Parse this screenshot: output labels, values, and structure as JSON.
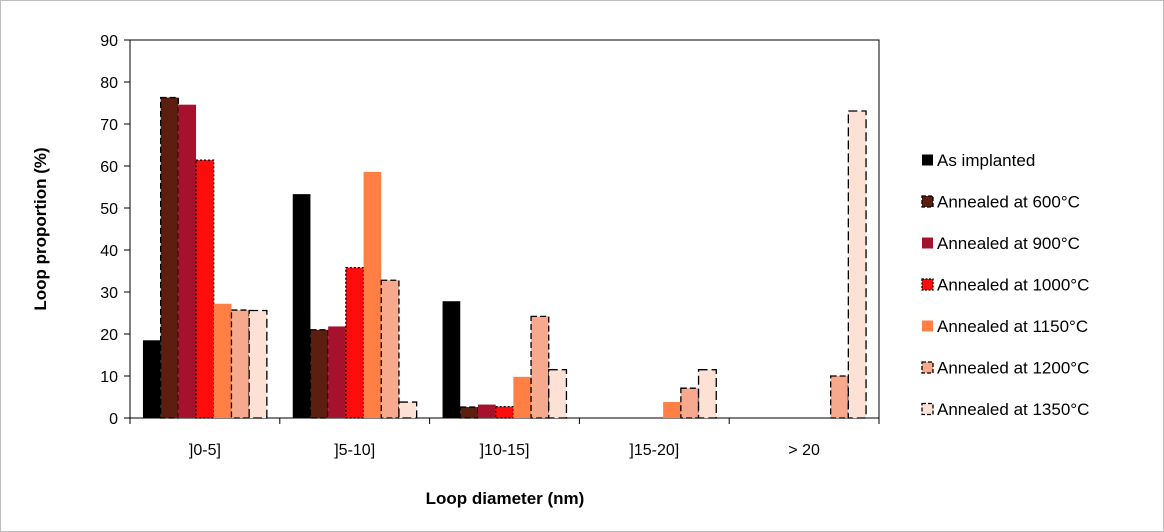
{
  "chart_data": {
    "type": "bar",
    "xlabel": "Loop diameter (nm)",
    "ylabel": "Loop proportion (%)",
    "ylim": [
      0,
      90
    ],
    "yticks": [
      "0",
      "10",
      "20",
      "30",
      "40",
      "50",
      "60",
      "70",
      "80",
      "90"
    ],
    "categories": [
      "]0-5]",
      "]5-10]",
      "]10-15]",
      "]15-20]",
      "> 20"
    ],
    "grid": false,
    "legend_position": "right",
    "series": [
      {
        "name": "As implanted",
        "color": "#000000",
        "border": "solid",
        "values": [
          18.5,
          53.3,
          27.8,
          0,
          0
        ]
      },
      {
        "name": "Annealed at 600°C",
        "color": "#5c1f0f",
        "border": "dashed",
        "values": [
          76.3,
          21.0,
          2.6,
          0,
          0
        ]
      },
      {
        "name": "Annealed at 900°C",
        "color": "#a6122d",
        "border": "solid",
        "values": [
          74.6,
          21.8,
          3.2,
          0,
          0
        ]
      },
      {
        "name": "Annealed at 1000°C",
        "color": "#ff0d0d",
        "border": "dotted",
        "values": [
          61.4,
          35.8,
          2.7,
          0,
          0
        ]
      },
      {
        "name": "Annealed at 1150°C",
        "color": "#ff7f45",
        "border": "solid",
        "values": [
          27.2,
          58.6,
          9.8,
          3.8,
          0
        ]
      },
      {
        "name": "Annealed at 1200°C",
        "color": "#f6a98d",
        "border": "dashed",
        "values": [
          25.7,
          32.8,
          24.2,
          7.1,
          10.0
        ]
      },
      {
        "name": "Annealed at 1350°C",
        "color": "#fde1d4",
        "border": "longdash",
        "values": [
          25.6,
          3.8,
          11.5,
          11.5,
          73.1
        ]
      }
    ]
  }
}
